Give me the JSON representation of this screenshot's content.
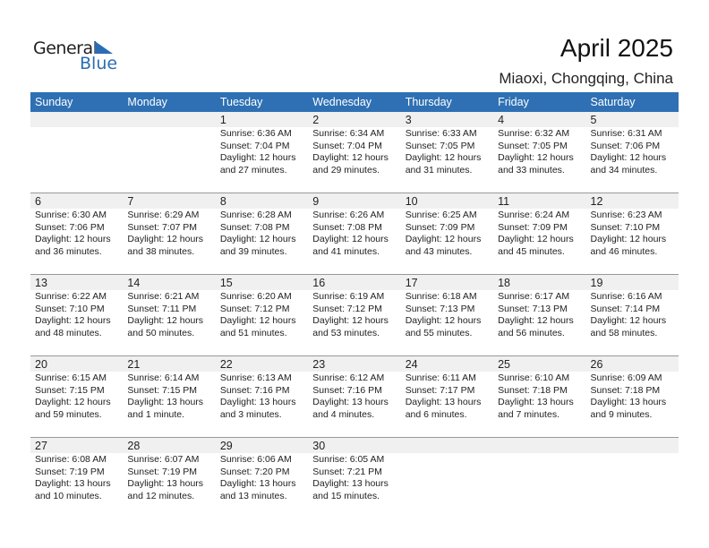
{
  "logo": {
    "general": "General",
    "blue": "Blue"
  },
  "title": "April 2025",
  "location": "Miaoxi, Chongqing, China",
  "colors": {
    "header": "#2e70b3",
    "band": "#f0f0f0"
  },
  "weekdays": [
    "Sunday",
    "Monday",
    "Tuesday",
    "Wednesday",
    "Thursday",
    "Friday",
    "Saturday"
  ],
  "weeks": [
    [
      null,
      null,
      {
        "day": "1",
        "sunrise": "Sunrise: 6:36 AM",
        "sunset": "Sunset: 7:04 PM",
        "daylight": "Daylight: 12 hours",
        "minutes": "and 27 minutes."
      },
      {
        "day": "2",
        "sunrise": "Sunrise: 6:34 AM",
        "sunset": "Sunset: 7:04 PM",
        "daylight": "Daylight: 12 hours",
        "minutes": "and 29 minutes."
      },
      {
        "day": "3",
        "sunrise": "Sunrise: 6:33 AM",
        "sunset": "Sunset: 7:05 PM",
        "daylight": "Daylight: 12 hours",
        "minutes": "and 31 minutes."
      },
      {
        "day": "4",
        "sunrise": "Sunrise: 6:32 AM",
        "sunset": "Sunset: 7:05 PM",
        "daylight": "Daylight: 12 hours",
        "minutes": "and 33 minutes."
      },
      {
        "day": "5",
        "sunrise": "Sunrise: 6:31 AM",
        "sunset": "Sunset: 7:06 PM",
        "daylight": "Daylight: 12 hours",
        "minutes": "and 34 minutes."
      }
    ],
    [
      {
        "day": "6",
        "sunrise": "Sunrise: 6:30 AM",
        "sunset": "Sunset: 7:06 PM",
        "daylight": "Daylight: 12 hours",
        "minutes": "and 36 minutes."
      },
      {
        "day": "7",
        "sunrise": "Sunrise: 6:29 AM",
        "sunset": "Sunset: 7:07 PM",
        "daylight": "Daylight: 12 hours",
        "minutes": "and 38 minutes."
      },
      {
        "day": "8",
        "sunrise": "Sunrise: 6:28 AM",
        "sunset": "Sunset: 7:08 PM",
        "daylight": "Daylight: 12 hours",
        "minutes": "and 39 minutes."
      },
      {
        "day": "9",
        "sunrise": "Sunrise: 6:26 AM",
        "sunset": "Sunset: 7:08 PM",
        "daylight": "Daylight: 12 hours",
        "minutes": "and 41 minutes."
      },
      {
        "day": "10",
        "sunrise": "Sunrise: 6:25 AM",
        "sunset": "Sunset: 7:09 PM",
        "daylight": "Daylight: 12 hours",
        "minutes": "and 43 minutes."
      },
      {
        "day": "11",
        "sunrise": "Sunrise: 6:24 AM",
        "sunset": "Sunset: 7:09 PM",
        "daylight": "Daylight: 12 hours",
        "minutes": "and 45 minutes."
      },
      {
        "day": "12",
        "sunrise": "Sunrise: 6:23 AM",
        "sunset": "Sunset: 7:10 PM",
        "daylight": "Daylight: 12 hours",
        "minutes": "and 46 minutes."
      }
    ],
    [
      {
        "day": "13",
        "sunrise": "Sunrise: 6:22 AM",
        "sunset": "Sunset: 7:10 PM",
        "daylight": "Daylight: 12 hours",
        "minutes": "and 48 minutes."
      },
      {
        "day": "14",
        "sunrise": "Sunrise: 6:21 AM",
        "sunset": "Sunset: 7:11 PM",
        "daylight": "Daylight: 12 hours",
        "minutes": "and 50 minutes."
      },
      {
        "day": "15",
        "sunrise": "Sunrise: 6:20 AM",
        "sunset": "Sunset: 7:12 PM",
        "daylight": "Daylight: 12 hours",
        "minutes": "and 51 minutes."
      },
      {
        "day": "16",
        "sunrise": "Sunrise: 6:19 AM",
        "sunset": "Sunset: 7:12 PM",
        "daylight": "Daylight: 12 hours",
        "minutes": "and 53 minutes."
      },
      {
        "day": "17",
        "sunrise": "Sunrise: 6:18 AM",
        "sunset": "Sunset: 7:13 PM",
        "daylight": "Daylight: 12 hours",
        "minutes": "and 55 minutes."
      },
      {
        "day": "18",
        "sunrise": "Sunrise: 6:17 AM",
        "sunset": "Sunset: 7:13 PM",
        "daylight": "Daylight: 12 hours",
        "minutes": "and 56 minutes."
      },
      {
        "day": "19",
        "sunrise": "Sunrise: 6:16 AM",
        "sunset": "Sunset: 7:14 PM",
        "daylight": "Daylight: 12 hours",
        "minutes": "and 58 minutes."
      }
    ],
    [
      {
        "day": "20",
        "sunrise": "Sunrise: 6:15 AM",
        "sunset": "Sunset: 7:15 PM",
        "daylight": "Daylight: 12 hours",
        "minutes": "and 59 minutes."
      },
      {
        "day": "21",
        "sunrise": "Sunrise: 6:14 AM",
        "sunset": "Sunset: 7:15 PM",
        "daylight": "Daylight: 13 hours",
        "minutes": "and 1 minute."
      },
      {
        "day": "22",
        "sunrise": "Sunrise: 6:13 AM",
        "sunset": "Sunset: 7:16 PM",
        "daylight": "Daylight: 13 hours",
        "minutes": "and 3 minutes."
      },
      {
        "day": "23",
        "sunrise": "Sunrise: 6:12 AM",
        "sunset": "Sunset: 7:16 PM",
        "daylight": "Daylight: 13 hours",
        "minutes": "and 4 minutes."
      },
      {
        "day": "24",
        "sunrise": "Sunrise: 6:11 AM",
        "sunset": "Sunset: 7:17 PM",
        "daylight": "Daylight: 13 hours",
        "minutes": "and 6 minutes."
      },
      {
        "day": "25",
        "sunrise": "Sunrise: 6:10 AM",
        "sunset": "Sunset: 7:18 PM",
        "daylight": "Daylight: 13 hours",
        "minutes": "and 7 minutes."
      },
      {
        "day": "26",
        "sunrise": "Sunrise: 6:09 AM",
        "sunset": "Sunset: 7:18 PM",
        "daylight": "Daylight: 13 hours",
        "minutes": "and 9 minutes."
      }
    ],
    [
      {
        "day": "27",
        "sunrise": "Sunrise: 6:08 AM",
        "sunset": "Sunset: 7:19 PM",
        "daylight": "Daylight: 13 hours",
        "minutes": "and 10 minutes."
      },
      {
        "day": "28",
        "sunrise": "Sunrise: 6:07 AM",
        "sunset": "Sunset: 7:19 PM",
        "daylight": "Daylight: 13 hours",
        "minutes": "and 12 minutes."
      },
      {
        "day": "29",
        "sunrise": "Sunrise: 6:06 AM",
        "sunset": "Sunset: 7:20 PM",
        "daylight": "Daylight: 13 hours",
        "minutes": "and 13 minutes."
      },
      {
        "day": "30",
        "sunrise": "Sunrise: 6:05 AM",
        "sunset": "Sunset: 7:21 PM",
        "daylight": "Daylight: 13 hours",
        "minutes": "and 15 minutes."
      },
      null,
      null,
      null
    ]
  ]
}
